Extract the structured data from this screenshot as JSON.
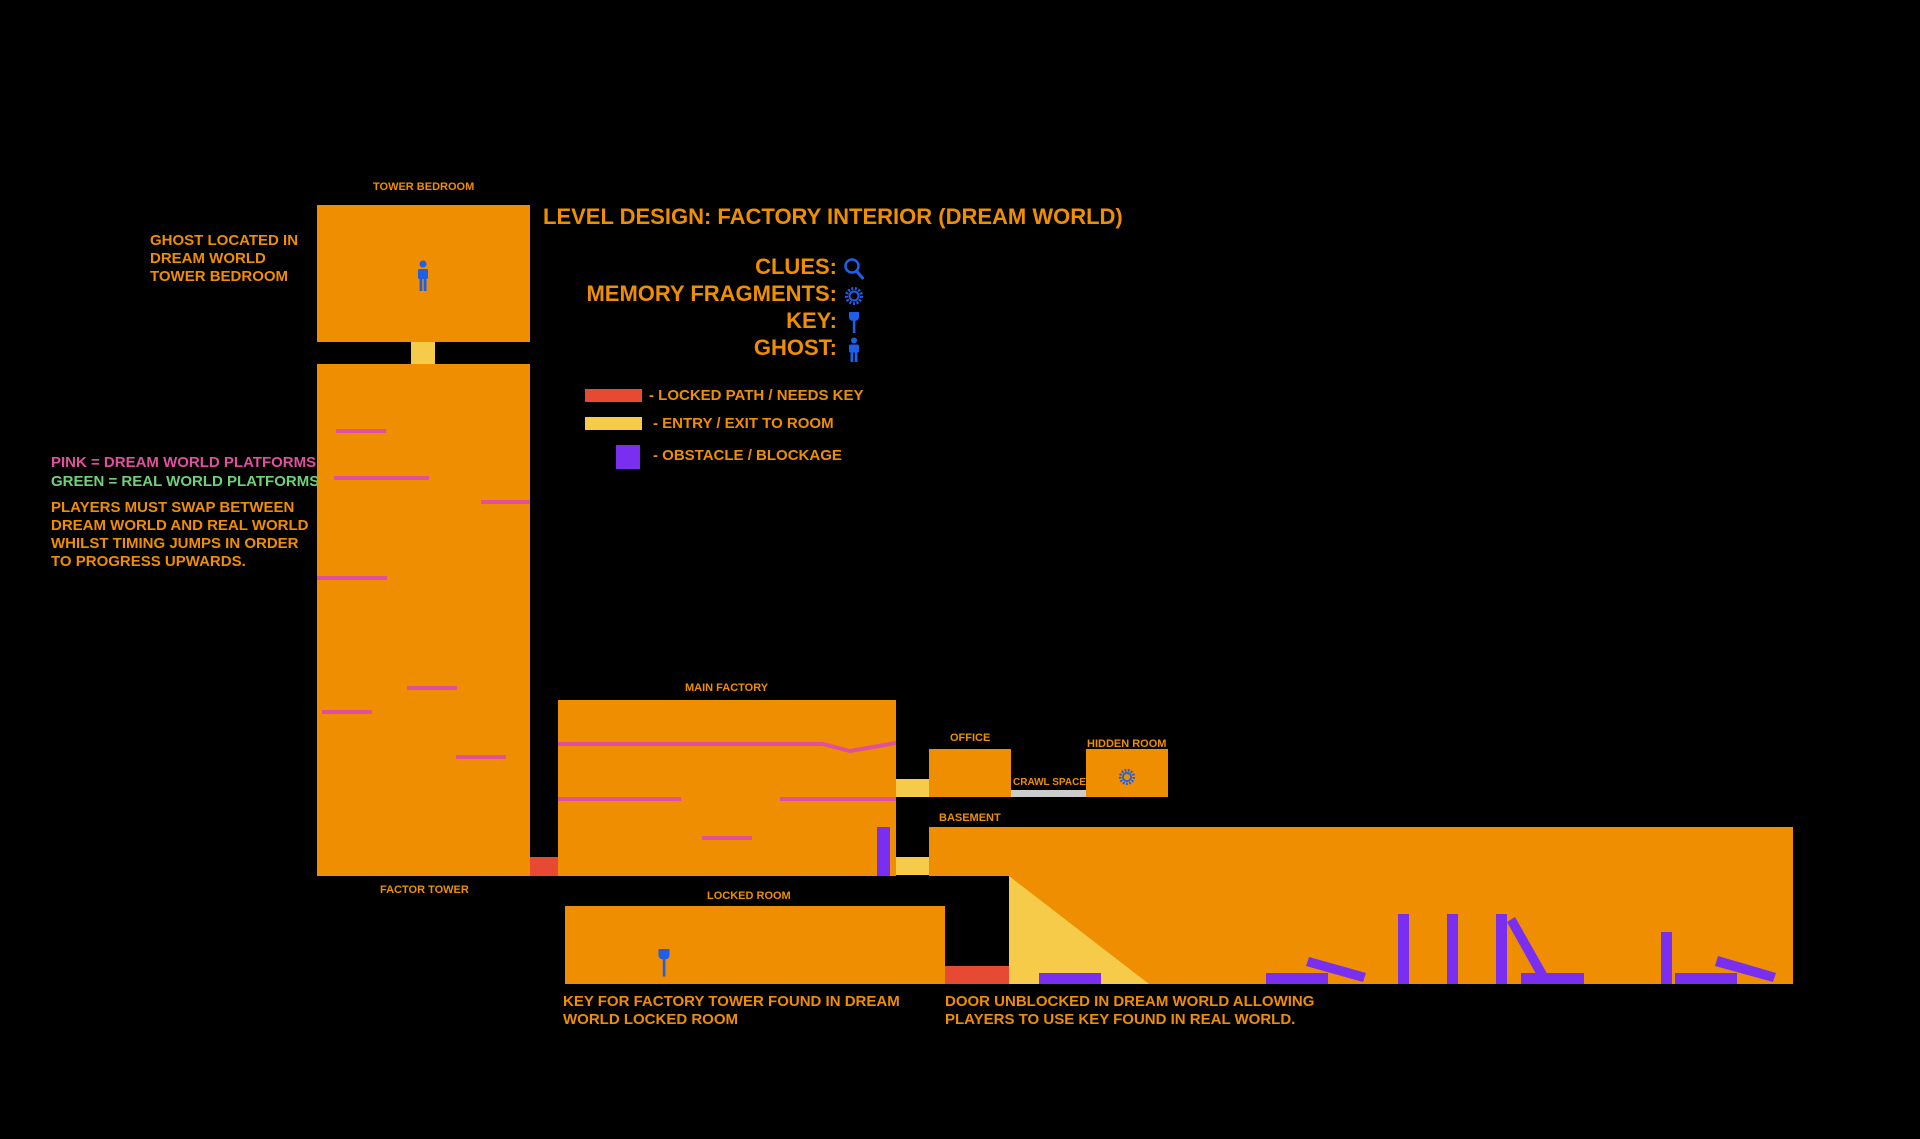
{
  "title": "LEVEL DESIGN: FACTORY INTERIOR (DREAM WORLD)",
  "legend": {
    "clues": "CLUES:",
    "memory_fragments": "MEMORY FRAGMENTS:",
    "key": "KEY:",
    "ghost": "GHOST:",
    "locked": "-  LOCKED PATH / NEEDS KEY",
    "entry": "-  ENTRY / EXIT TO ROOM",
    "obstacle": "-  OBSTACLE / BLOCKAGE"
  },
  "rooms": {
    "tower_bedroom": "TOWER BEDROOM",
    "factor_tower": "FACTOR TOWER",
    "main_factory": "MAIN FACTORY",
    "office": "OFFICE",
    "hidden_room": "HIDDEN ROOM",
    "crawl_space": "CRAWL SPACE",
    "basement": "BASEMENT",
    "locked_room": "LOCKED ROOM"
  },
  "notes": {
    "ghost": "GHOST LOCATED IN DREAM WORLD TOWER BEDROOM",
    "pink": "PINK = DREAM WORLD PLATFORMS",
    "green": "GREEN = REAL WORLD PLATFORMS",
    "players": "PLAYERS MUST SWAP BETWEEN DREAM WORLD AND REAL WORLD WHILST TIMING JUMPS IN ORDER TO PROGRESS UPWARDS.",
    "key": "KEY FOR FACTORY TOWER FOUND IN DREAM WORLD LOCKED ROOM",
    "door": "DOOR UNBLOCKED IN DREAM WORLD ALLOWING PLAYERS TO USE KEY FOUND IN REAL WORLD."
  },
  "icons": {
    "clue": "magnifier-icon",
    "memory": "gear-icon",
    "key": "key-icon",
    "ghost": "person-icon"
  },
  "colors": {
    "room": "#EE8E00",
    "pink": "#E0509C",
    "green": "#6FD17A",
    "purple": "#7A2EF0",
    "red": "#E64A33",
    "yellow": "#F7CB4A",
    "icon_blue": "#1E5FE8"
  }
}
